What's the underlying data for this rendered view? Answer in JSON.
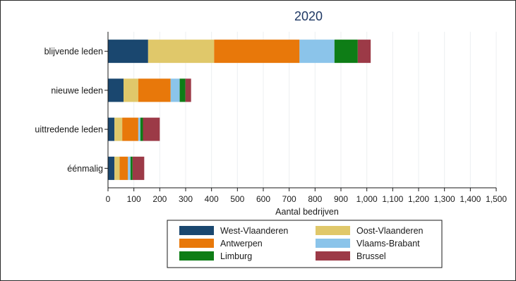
{
  "chart_data": {
    "type": "bar",
    "orientation": "horizontal",
    "stacked": true,
    "title": "2020",
    "xlabel": "Aantal bedrijven",
    "ylabel": "",
    "xlim": [
      0,
      1500
    ],
    "xticks": [
      0,
      100,
      200,
      300,
      400,
      500,
      600,
      700,
      800,
      900,
      1000,
      1100,
      1200,
      1300,
      1400,
      1500
    ],
    "xtick_labels": [
      "0",
      "100",
      "200",
      "300",
      "400",
      "500",
      "600",
      "700",
      "800",
      "900",
      "1,000",
      "1,100",
      "1,200",
      "1,300",
      "1,400",
      "1,500"
    ],
    "grid": true,
    "legend_position": "bottom",
    "categories": [
      "blijvende leden",
      "nieuwe leden",
      "uittredende leden",
      "éénmalig"
    ],
    "series": [
      {
        "name": "West-Vlaanderen",
        "color": "#1a476f",
        "values": [
          155,
          60,
          25,
          25
        ]
      },
      {
        "name": "Oost-Vlaanderen",
        "color": "#e0c86a",
        "values": [
          255,
          57,
          30,
          20
        ]
      },
      {
        "name": "Antwerpen",
        "color": "#e8780a",
        "values": [
          330,
          125,
          62,
          32
        ]
      },
      {
        "name": "Vlaams-Brabant",
        "color": "#8bc4ea",
        "values": [
          135,
          35,
          8,
          10
        ]
      },
      {
        "name": "Limburg",
        "color": "#0e7d16",
        "values": [
          90,
          22,
          10,
          8
        ]
      },
      {
        "name": "Brussel",
        "color": "#9c3a47",
        "values": [
          50,
          22,
          65,
          45
        ]
      }
    ]
  }
}
